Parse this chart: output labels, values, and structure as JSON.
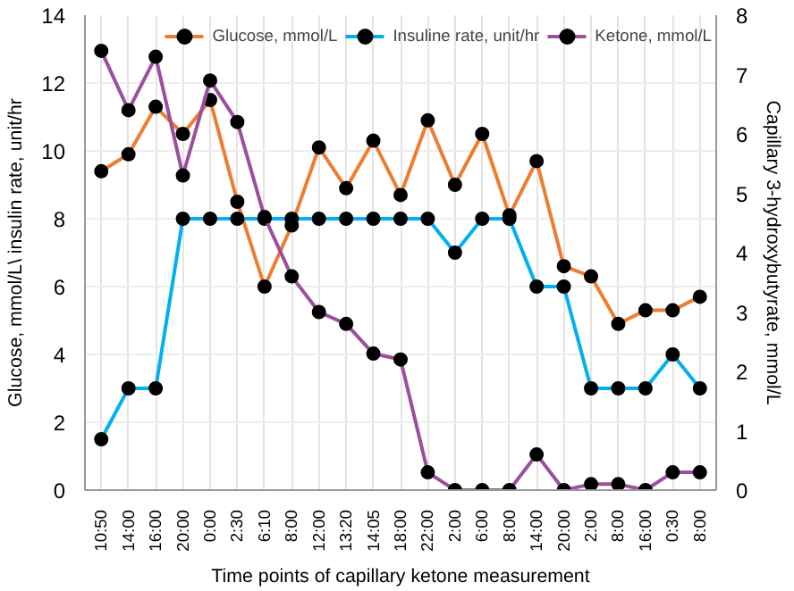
{
  "chart_data": {
    "type": "line",
    "xlabel": "Time points of capillary ketone measurement",
    "ylabel": "Glucose, mmol/L\\ insulin rate, unit/hr",
    "y2label": "Capillary 3-hydroxybutyrate, mmol/L",
    "categories": [
      "10:50",
      "14:00",
      "16:00",
      "20:00",
      "0:00",
      "2:30",
      "6:10",
      "8:00",
      "12:00",
      "13:20",
      "14:05",
      "18:00",
      "22:00",
      "2:00",
      "6:00",
      "8:00",
      "14:00",
      "20:00",
      "2:00",
      "8:00",
      "16:00",
      "0:30",
      "8:00"
    ],
    "series": [
      {
        "name": "Glucose, mmol/L",
        "color": "#ed7d31",
        "values": [
          9.4,
          9.9,
          11.3,
          10.5,
          11.5,
          8.5,
          6.0,
          7.8,
          10.1,
          8.9,
          10.3,
          8.7,
          10.9,
          9.0,
          10.5,
          8.1,
          9.7,
          6.6,
          6.3,
          4.9,
          5.3,
          5.3,
          5.7
        ]
      },
      {
        "name": "Insuline rate, unit/hr",
        "color": "#00b0f0",
        "values": [
          1.5,
          3,
          3,
          8,
          8,
          8,
          8,
          8,
          8,
          8,
          8,
          8,
          8,
          7,
          8,
          8,
          6,
          6,
          3,
          3,
          3,
          4,
          3
        ]
      },
      {
        "name": "Ketone, mmol/L",
        "color": "#9b4f9e",
        "axis": "y2",
        "values": [
          7.4,
          6.4,
          7.3,
          5.3,
          6.9,
          6.2,
          4.6,
          3.6,
          3.0,
          2.8,
          2.3,
          2.2,
          0.3,
          0,
          0,
          0,
          0.6,
          0,
          0.1,
          0.1,
          0,
          0.3,
          0.3
        ]
      }
    ],
    "ylim": [
      0,
      14
    ],
    "yticks": [
      0,
      2,
      4,
      6,
      8,
      10,
      12,
      14
    ],
    "y2lim": [
      0,
      8
    ],
    "y2ticks": [
      0,
      1,
      2,
      3,
      4,
      5,
      6,
      7,
      8
    ],
    "grid": true,
    "legend": "top right",
    "marker": "circle",
    "line_style": "solid"
  }
}
